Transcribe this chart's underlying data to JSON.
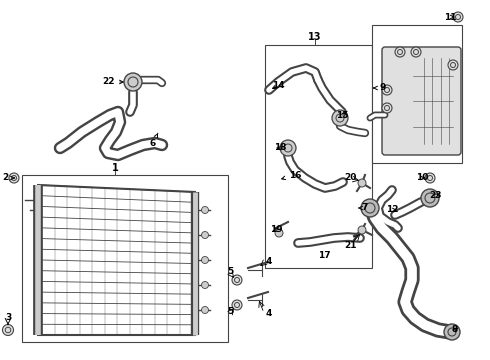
{
  "bg_color": "#ffffff",
  "lc": "#444444",
  "figsize": [
    4.9,
    3.6
  ],
  "dpi": 100
}
